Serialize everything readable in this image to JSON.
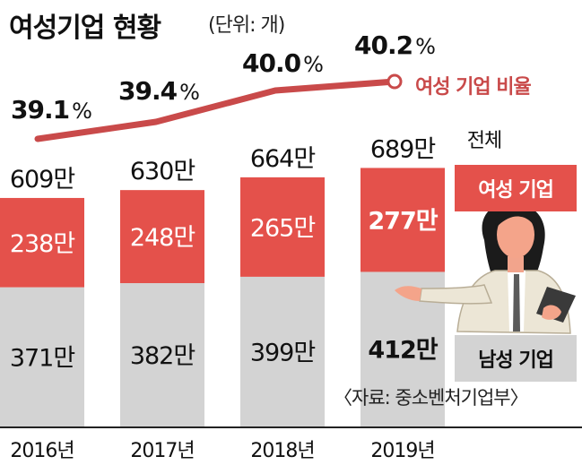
{
  "title": "여성기업 현황",
  "unit_note": "(단위: 개)",
  "source": "〈자료: 중소벤처기업부〉",
  "colors": {
    "female": "#e4514b",
    "male": "#d3d3d3",
    "line": "#c94a4a",
    "text": "#111111"
  },
  "legend": {
    "total": "전체",
    "female": "여성 기업",
    "male": "남성 기업",
    "ratio": "여성 기업 비율"
  },
  "chart_data": {
    "type": "bar",
    "stacked": true,
    "categories": [
      "2016년",
      "2017년",
      "2018년",
      "2019년"
    ],
    "series": [
      {
        "name": "남성 기업",
        "values": [
          371,
          382,
          399,
          412
        ],
        "labels": [
          "371만",
          "382만",
          "399만",
          "412만"
        ]
      },
      {
        "name": "여성 기업",
        "values": [
          238,
          248,
          265,
          277
        ],
        "labels": [
          "238만",
          "248만",
          "265만",
          "277만"
        ]
      }
    ],
    "totals": {
      "name": "전체",
      "values": [
        609,
        630,
        664,
        689
      ],
      "labels": [
        "609만",
        "630만",
        "664만",
        "689만"
      ]
    },
    "ratio": {
      "name": "여성 기업 비율",
      "values": [
        39.1,
        39.4,
        40.0,
        40.2
      ],
      "labels": [
        "39.1",
        "39.4",
        "40.0",
        "40.2"
      ],
      "unit": "%"
    }
  }
}
